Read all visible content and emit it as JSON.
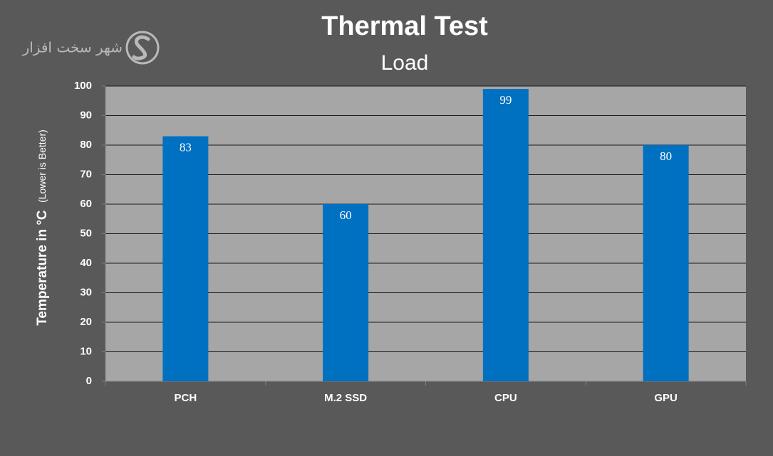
{
  "chart_data": {
    "type": "bar",
    "title": "Thermal Test",
    "subtitle": "Load",
    "y_label": "Temperature in °C",
    "y_label_note": "(Lower is Better)",
    "watermark": "شهر سخت افزار",
    "categories": [
      "PCH",
      "M.2 SSD",
      "CPU",
      "GPU"
    ],
    "values": [
      83,
      60,
      99,
      80
    ],
    "color": "#0070c0",
    "ylim": [
      0,
      100
    ],
    "yticks": [
      0,
      10,
      20,
      30,
      40,
      50,
      60,
      70,
      80,
      90,
      100
    ],
    "grid": true
  }
}
